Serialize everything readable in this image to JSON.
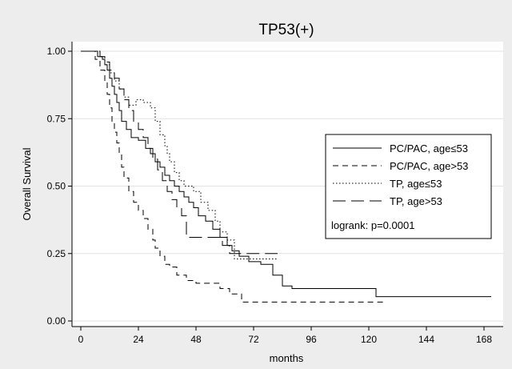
{
  "chart_data": {
    "type": "line",
    "title": "TP53(+)",
    "xlabel": "months",
    "ylabel": "Overall Survival",
    "xlim": [
      0,
      174
    ],
    "ylim": [
      0,
      1
    ],
    "x_ticks": [
      0,
      24,
      48,
      72,
      96,
      120,
      144,
      168
    ],
    "y_ticks": [
      0,
      0.25,
      0.5,
      0.75,
      1
    ],
    "y_tick_labels": [
      "0.00",
      "0.25",
      "0.50",
      "0.75",
      "1.00"
    ],
    "grid": "horizontal",
    "legend_position": "right",
    "annotation": "logrank: p=0.0001",
    "series": [
      {
        "name": "PC/PAC, age≤53",
        "style": "solid",
        "x": [
          0,
          5,
          7,
          9,
          10,
          11,
          12,
          13,
          14,
          15,
          16,
          17,
          19,
          21,
          24,
          27,
          29,
          31,
          33,
          35,
          37,
          39,
          41,
          43,
          45,
          47,
          49,
          52,
          55,
          58,
          61,
          63,
          66,
          70,
          75,
          80,
          84,
          88,
          92,
          97,
          102,
          108,
          114,
          120,
          123,
          171
        ],
        "y": [
          1.0,
          1.0,
          0.98,
          0.97,
          0.95,
          0.93,
          0.9,
          0.87,
          0.84,
          0.81,
          0.78,
          0.74,
          0.71,
          0.68,
          0.67,
          0.64,
          0.62,
          0.59,
          0.57,
          0.54,
          0.52,
          0.5,
          0.48,
          0.46,
          0.44,
          0.42,
          0.39,
          0.37,
          0.34,
          0.31,
          0.28,
          0.26,
          0.24,
          0.22,
          0.21,
          0.17,
          0.13,
          0.12,
          0.12,
          0.12,
          0.12,
          0.12,
          0.12,
          0.12,
          0.09,
          0.09
        ]
      },
      {
        "name": "PC/PAC, age>53",
        "style": "dashed",
        "x": [
          0,
          4,
          6,
          8,
          10,
          11,
          12,
          13,
          14,
          15,
          16,
          17,
          18,
          20,
          22,
          24,
          26,
          28,
          30,
          31,
          33,
          35,
          37,
          40,
          44,
          48,
          53,
          58,
          62,
          67,
          80,
          100,
          127
        ],
        "y": [
          1.0,
          1.0,
          0.97,
          0.93,
          0.89,
          0.84,
          0.79,
          0.74,
          0.7,
          0.66,
          0.62,
          0.57,
          0.53,
          0.48,
          0.44,
          0.41,
          0.38,
          0.34,
          0.3,
          0.27,
          0.24,
          0.21,
          0.2,
          0.17,
          0.15,
          0.14,
          0.14,
          0.12,
          0.1,
          0.07,
          0.07,
          0.07,
          0.07
        ]
      },
      {
        "name": "TP, age≤53",
        "style": "dotted",
        "x": [
          0,
          6,
          8,
          10,
          12,
          14,
          16,
          18,
          20,
          23,
          26,
          29,
          31,
          33,
          35,
          36,
          37,
          39,
          41,
          43,
          45,
          47,
          50,
          53,
          56,
          58,
          61,
          64,
          67,
          70,
          73,
          77,
          82
        ],
        "y": [
          1.0,
          1.0,
          0.98,
          0.95,
          0.92,
          0.89,
          0.86,
          0.83,
          0.8,
          0.82,
          0.81,
          0.79,
          0.74,
          0.69,
          0.65,
          0.62,
          0.59,
          0.55,
          0.52,
          0.5,
          0.5,
          0.48,
          0.44,
          0.41,
          0.37,
          0.33,
          0.3,
          0.23,
          0.23,
          0.23,
          0.23,
          0.23,
          0.23
        ]
      },
      {
        "name": "TP, age>53",
        "style": "longdash",
        "x": [
          0,
          6,
          8,
          10,
          12,
          14,
          16,
          18,
          20,
          22,
          24,
          26,
          28,
          30,
          32,
          34,
          36,
          38,
          40,
          42,
          44,
          46,
          48,
          50,
          52,
          54,
          57,
          59,
          62,
          64,
          70,
          76,
          82
        ],
        "y": [
          1.0,
          1.0,
          0.98,
          0.96,
          0.93,
          0.9,
          0.86,
          0.82,
          0.78,
          0.74,
          0.71,
          0.68,
          0.64,
          0.6,
          0.56,
          0.52,
          0.48,
          0.45,
          0.42,
          0.39,
          0.31,
          0.31,
          0.31,
          0.31,
          0.31,
          0.31,
          0.31,
          0.28,
          0.25,
          0.25,
          0.25,
          0.25,
          0.25
        ]
      }
    ]
  }
}
